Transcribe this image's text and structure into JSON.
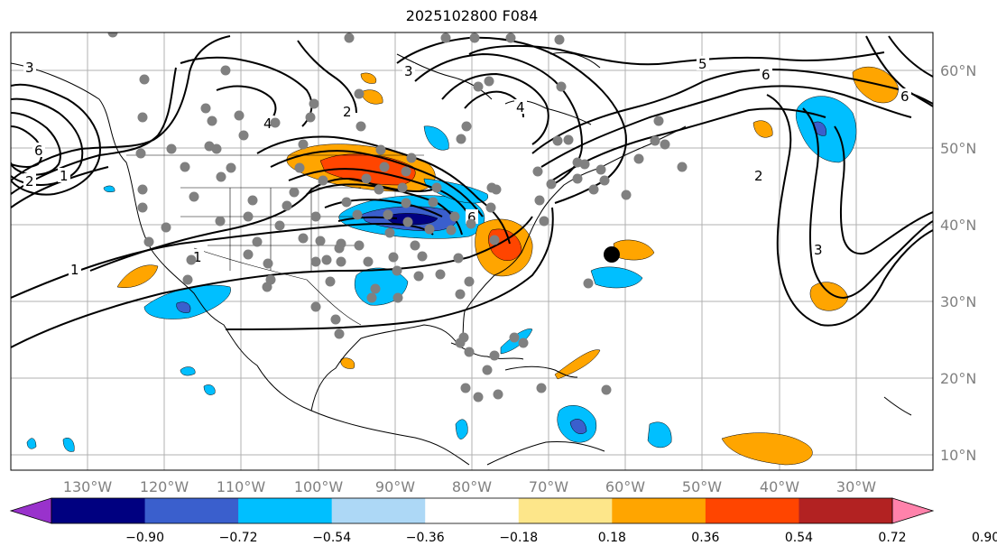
{
  "title": "2025102800 F084",
  "lon_labels": [
    "130°W",
    "120°W",
    "110°W",
    "100°W",
    "90°W",
    "80°W",
    "70°W",
    "60°W",
    "50°W",
    "40°W",
    "30°W"
  ],
  "lat_labels": [
    "60°N",
    "50°N",
    "40°N",
    "30°N",
    "20°N",
    "10°N"
  ],
  "colorbar": {
    "colors": [
      "#9932cc",
      "#000080",
      "#3a5fcd",
      "#00bfff",
      "#add8f6",
      "#ffffff",
      "#fde68a",
      "#ffa500",
      "#ff4500",
      "#b22222",
      "#ff82ab"
    ],
    "tick_labels": [
      "−0.90",
      "−0.72",
      "−0.54",
      "−0.36",
      "−0.18",
      "0.18",
      "0.36",
      "0.54",
      "0.72",
      "0.90"
    ]
  },
  "contour_labels": [
    "1",
    "1",
    "1",
    "2",
    "2",
    "3",
    "3",
    "3",
    "4",
    "5",
    "6",
    "6",
    "6",
    "2",
    "4",
    "6"
  ],
  "map": {
    "extent": "140°W–20°W, 8°N–65°N",
    "marker": "black dot near 60°W 36°N",
    "stations": "grey dots over North America"
  }
}
